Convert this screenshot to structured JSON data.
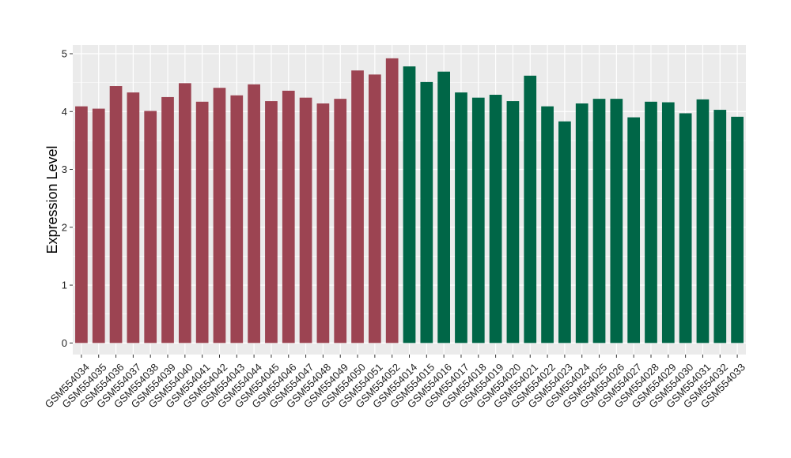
{
  "chart_data": {
    "type": "bar",
    "title": "",
    "xlabel": "",
    "ylabel": "Expression Level",
    "ylim": [
      -0.2,
      5.15
    ],
    "yticks": [
      0,
      1,
      2,
      3,
      4,
      5
    ],
    "grid": true,
    "colors": {
      "group_a": "#9c4452",
      "group_b": "#006647",
      "panel_bg": "#ebebeb",
      "grid": "#ffffff"
    },
    "categories": [
      "GSM554034",
      "GSM554035",
      "GSM554036",
      "GSM554037",
      "GSM554038",
      "GSM554039",
      "GSM554040",
      "GSM554041",
      "GSM554042",
      "GSM554043",
      "GSM554044",
      "GSM554045",
      "GSM554046",
      "GSM554047",
      "GSM554048",
      "GSM554049",
      "GSM554050",
      "GSM554051",
      "GSM554052",
      "GSM554014",
      "GSM554015",
      "GSM554016",
      "GSM554017",
      "GSM554018",
      "GSM554019",
      "GSM554020",
      "GSM554021",
      "GSM554022",
      "GSM554023",
      "GSM554024",
      "GSM554025",
      "GSM554026",
      "GSM554027",
      "GSM554028",
      "GSM554029",
      "GSM554030",
      "GSM554031",
      "GSM554032",
      "GSM554033"
    ],
    "values": [
      4.09,
      4.05,
      4.44,
      4.33,
      4.01,
      4.25,
      4.49,
      4.17,
      4.41,
      4.28,
      4.47,
      4.18,
      4.36,
      4.24,
      4.14,
      4.22,
      4.71,
      4.64,
      4.92,
      4.78,
      4.51,
      4.69,
      4.33,
      4.24,
      4.29,
      4.18,
      4.62,
      4.09,
      3.83,
      4.14,
      4.22,
      4.22,
      3.9,
      4.17,
      4.16,
      3.97,
      4.21,
      4.03,
      3.91
    ],
    "groups": [
      "a",
      "a",
      "a",
      "a",
      "a",
      "a",
      "a",
      "a",
      "a",
      "a",
      "a",
      "a",
      "a",
      "a",
      "a",
      "a",
      "a",
      "a",
      "a",
      "b",
      "b",
      "b",
      "b",
      "b",
      "b",
      "b",
      "b",
      "b",
      "b",
      "b",
      "b",
      "b",
      "b",
      "b",
      "b",
      "b",
      "b",
      "b",
      "b"
    ]
  }
}
